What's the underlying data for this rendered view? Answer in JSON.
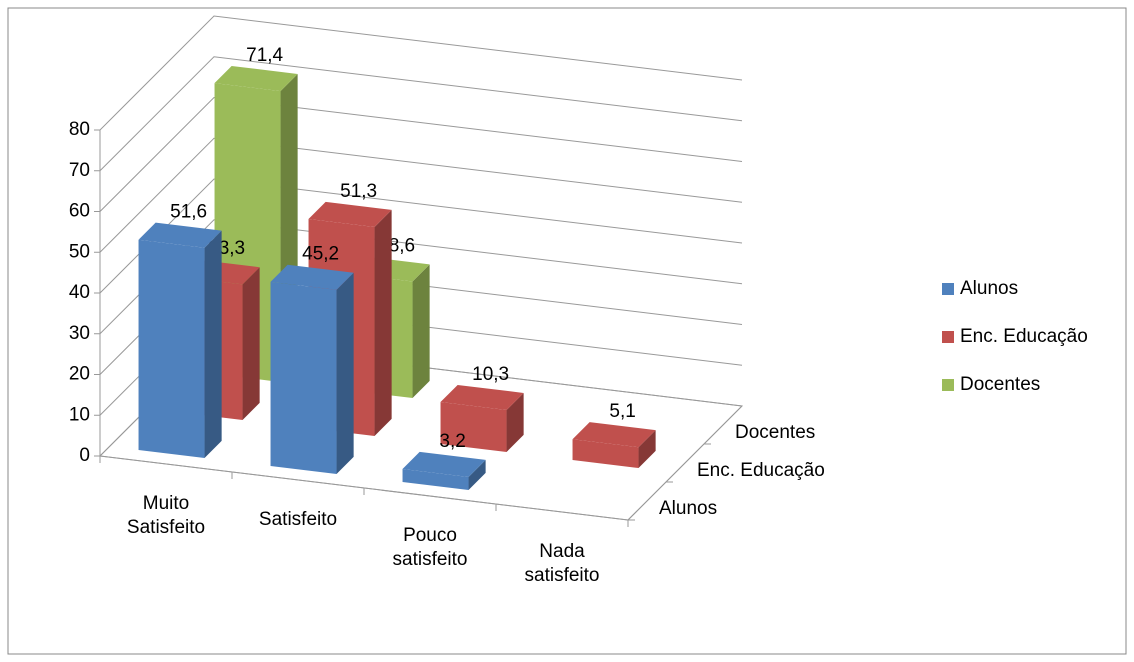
{
  "chart_data": {
    "type": "bar",
    "categories": [
      "Muito Satisfeito",
      "Satisfeito",
      "Pouco satisfeito",
      "Nada satisfeito"
    ],
    "series": [
      {
        "name": "Alunos",
        "color": "#4f81bd",
        "values": [
          51.6,
          45.2,
          3.2,
          null
        ],
        "value_labels": [
          "51,6",
          "45,2",
          "3,2",
          null
        ]
      },
      {
        "name": "Enc. Educação",
        "color": "#c0504d",
        "values": [
          33.3,
          51.3,
          10.3,
          5.1
        ],
        "value_labels": [
          "33,3",
          "51,3",
          "10,3",
          "5,1"
        ]
      },
      {
        "name": "Docentes",
        "color": "#9bbb59",
        "values": [
          71.4,
          28.6,
          null,
          null
        ],
        "value_labels": [
          "71,4",
          "28,6",
          null,
          null
        ]
      }
    ],
    "ylim": [
      0,
      80
    ],
    "yticks": [
      0,
      10,
      20,
      30,
      40,
      50,
      60,
      70,
      80
    ],
    "grid": true,
    "legend": "right"
  }
}
